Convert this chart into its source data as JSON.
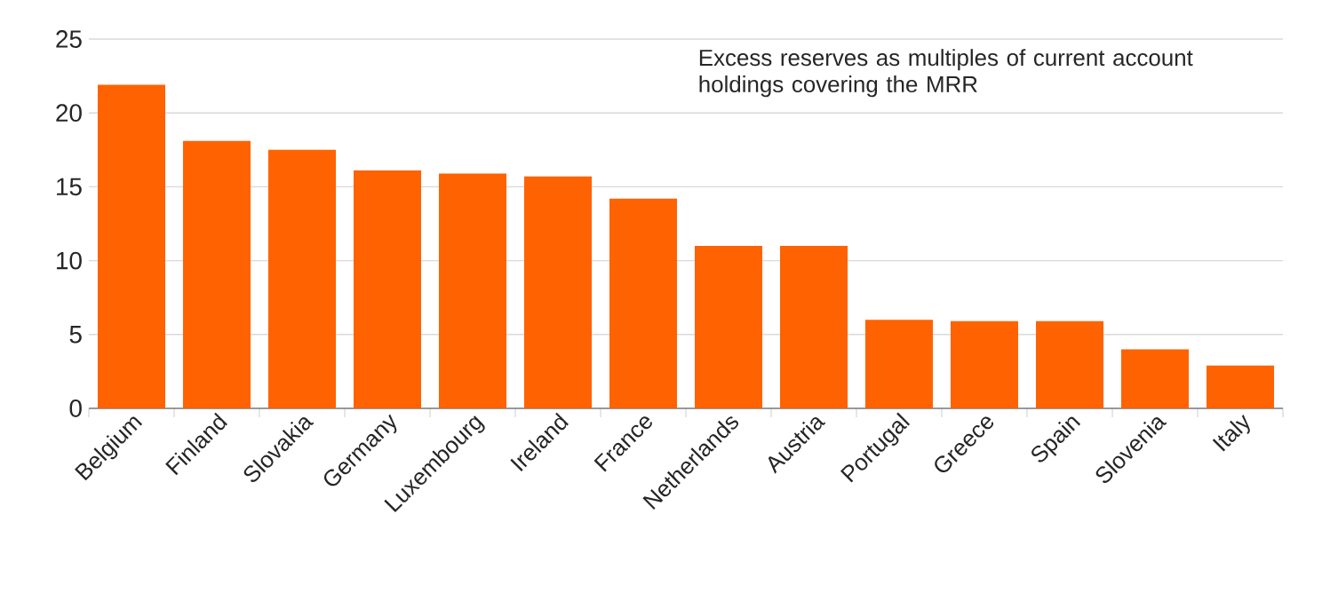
{
  "chart_data": {
    "type": "bar",
    "categories": [
      "Belgium",
      "Finland",
      "Slovakia",
      "Germany",
      "Luxembourg",
      "Ireland",
      "France",
      "Netherlands",
      "Austria",
      "Portugal",
      "Greece",
      "Spain",
      "Slovenia",
      "Italy"
    ],
    "values": [
      21.9,
      18.1,
      17.5,
      16.1,
      15.9,
      15.7,
      14.2,
      11.0,
      11.0,
      6.0,
      5.9,
      5.9,
      4.0,
      2.9
    ],
    "color": "#ff6200",
    "ylim": [
      0,
      25
    ],
    "yticks": [
      0,
      5,
      10,
      15,
      20,
      25
    ],
    "grid": "y",
    "annotations": [
      "Excess reserves as multiples of current account holdings covering the MRR"
    ]
  }
}
